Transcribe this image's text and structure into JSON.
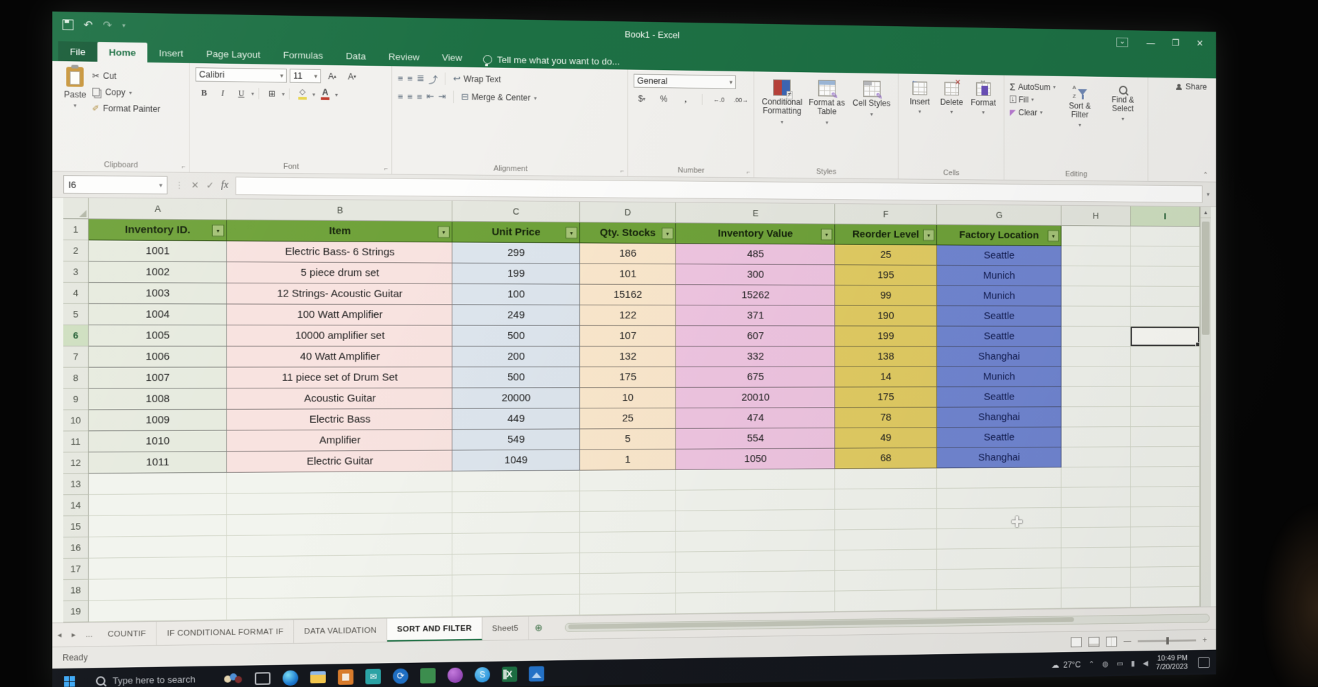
{
  "titlebar": {
    "title": "Book1 - Excel",
    "minimize": "—",
    "restore": "❐",
    "close": "✕"
  },
  "ribbon_tabs": {
    "items": [
      {
        "label": "File",
        "active": false,
        "file": true
      },
      {
        "label": "Home",
        "active": true
      },
      {
        "label": "Insert",
        "active": false
      },
      {
        "label": "Page Layout",
        "active": false
      },
      {
        "label": "Formulas",
        "active": false
      },
      {
        "label": "Data",
        "active": false
      },
      {
        "label": "Review",
        "active": false
      },
      {
        "label": "View",
        "active": false
      }
    ],
    "tell_me": "Tell me what you want to do..."
  },
  "ribbon": {
    "share_label": "Share",
    "clipboard": {
      "label": "Clipboard",
      "paste": "Paste",
      "cut": "Cut",
      "copy": "Copy",
      "format_painter": "Format Painter"
    },
    "font": {
      "label": "Font",
      "name": "Calibri",
      "size": "11"
    },
    "alignment": {
      "label": "Alignment",
      "wrap_text": "Wrap Text",
      "merge_center": "Merge & Center"
    },
    "number": {
      "label": "Number",
      "format": "General"
    },
    "styles": {
      "label": "Styles",
      "conditional": "Conditional Formatting",
      "format_table": "Format as Table",
      "cell_styles": "Cell Styles"
    },
    "cells": {
      "label": "Cells",
      "insert": "Insert",
      "delete": "Delete",
      "format": "Format"
    },
    "editing": {
      "label": "Editing",
      "autosum": "AutoSum",
      "fill": "Fill",
      "clear": "Clear",
      "sort_filter": "Sort & Filter",
      "find_select": "Find & Select"
    }
  },
  "formula_bar": {
    "name_box": "I6",
    "fx": "fx",
    "value": ""
  },
  "grid": {
    "columns": [
      "A",
      "B",
      "C",
      "D",
      "E",
      "F",
      "G",
      "H",
      "I"
    ],
    "row_count": 19,
    "selected_cell": "I6"
  },
  "table": {
    "headers": [
      "Inventory ID.",
      "Item",
      "Unit Price",
      "Qty. Stocks",
      "Inventory Value",
      "Reorder Level",
      "Factory Location"
    ],
    "rows": [
      [
        "1001",
        "Electric Bass- 6 Strings",
        "299",
        "186",
        "485",
        "25",
        "Seattle"
      ],
      [
        "1002",
        "5 piece drum set",
        "199",
        "101",
        "300",
        "195",
        "Munich"
      ],
      [
        "1003",
        "12 Strings- Acoustic Guitar",
        "100",
        "15162",
        "15262",
        "99",
        "Munich"
      ],
      [
        "1004",
        "100 Watt Amplifier",
        "249",
        "122",
        "371",
        "190",
        "Seattle"
      ],
      [
        "1005",
        "10000 amplifier set",
        "500",
        "107",
        "607",
        "199",
        "Seattle"
      ],
      [
        "1006",
        "40 Watt Amplifier",
        "200",
        "132",
        "332",
        "138",
        "Shanghai"
      ],
      [
        "1007",
        "11 piece set of Drum Set",
        "500",
        "175",
        "675",
        "14",
        "Munich"
      ],
      [
        "1008",
        "Acoustic Guitar",
        "20000",
        "10",
        "20010",
        "175",
        "Seattle"
      ],
      [
        "1009",
        "Electric Bass",
        "449",
        "25",
        "474",
        "78",
        "Shanghai"
      ],
      [
        "1010",
        "Amplifier",
        "549",
        "5",
        "554",
        "49",
        "Seattle"
      ],
      [
        "1011",
        "Electric Guitar",
        "1049",
        "1",
        "1050",
        "68",
        "Shanghai"
      ]
    ],
    "header_fill": "#6fa23a",
    "header_text_color": "#15230b",
    "column_fills": [
      "#e7ebdf",
      "#f8e3e0",
      "#dde5ed",
      "#fae7cc",
      "#efc5e1",
      "#e2cc63",
      "#7186d2"
    ],
    "column_text_colors": [
      "#1e1e1e",
      "#1e1e1e",
      "#1e1e1e",
      "#1e1e1e",
      "#1e1e1e",
      "#1e1e1e",
      "#101a4d"
    ]
  },
  "sheet_tabs": {
    "overflow": "...",
    "items": [
      {
        "label": "COUNTIF",
        "active": false
      },
      {
        "label": "IF CONDITIONAL FORMAT IF",
        "active": false
      },
      {
        "label": "DATA VALIDATION",
        "active": false
      },
      {
        "label": "SORT AND FILTER",
        "active": true
      },
      {
        "label": "Sheet5",
        "active": false
      }
    ]
  },
  "status_bar": {
    "ready": "Ready"
  },
  "taskbar": {
    "search_placeholder": "Type here to search",
    "app_icons": [
      "people",
      "tablet",
      "edge",
      "explorer",
      "app-orange",
      "mail",
      "sync",
      "folder",
      "app-purple",
      "skype",
      "excel",
      "photos"
    ],
    "temperature": "27°C",
    "clock": {
      "time": "10:49 PM",
      "date": "7/20/2023"
    }
  },
  "colors": {
    "excel_green": "#1d7044",
    "ribbon_bg": "#f2f1ee",
    "selection_border": "#343434"
  }
}
